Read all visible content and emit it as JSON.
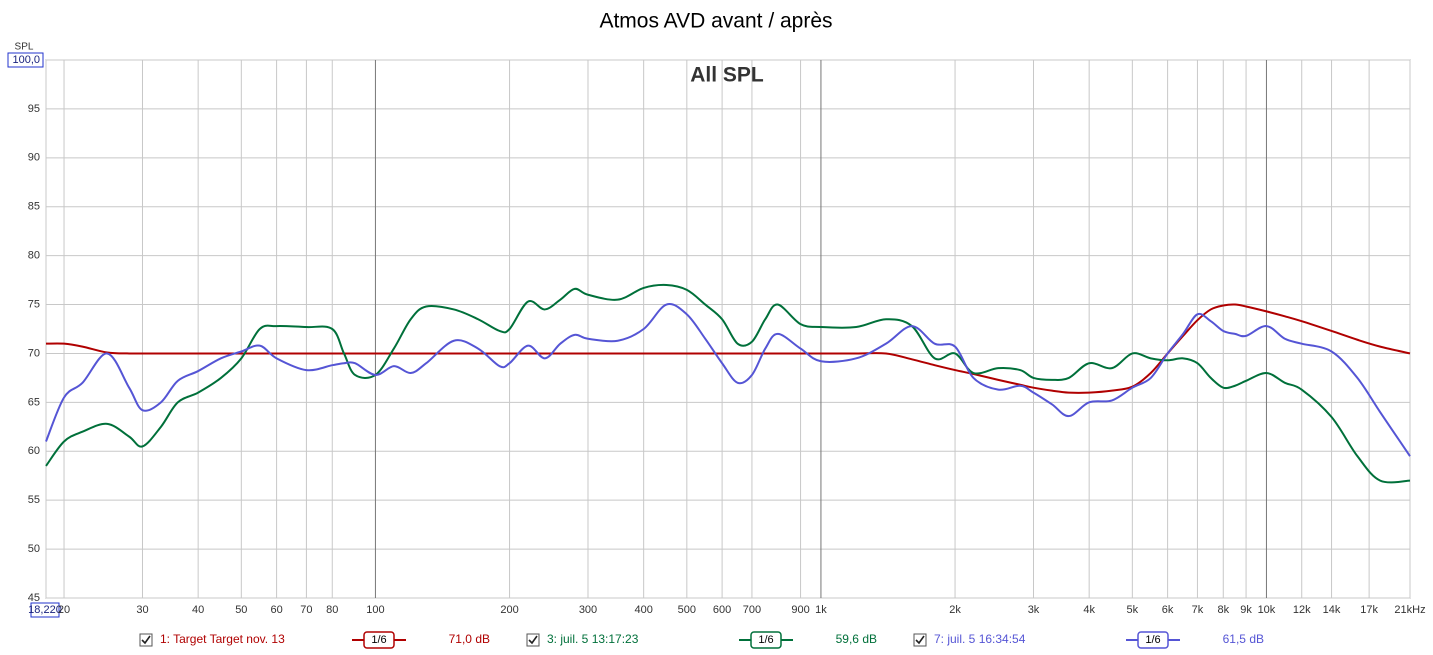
{
  "chart_data": {
    "type": "line",
    "title": "Atmos AVD avant / après",
    "subtitle": "All SPL",
    "y_label": "SPL",
    "log_x": true,
    "grid": true,
    "xlim": [
      18.22,
      21000
    ],
    "ylim": [
      45,
      100
    ],
    "xticks": [
      {
        "value": 18.22,
        "label": "18,220"
      },
      20,
      30,
      40,
      50,
      60,
      70,
      80,
      100,
      200,
      300,
      400,
      500,
      600,
      700,
      900,
      {
        "value": 1000,
        "label": "1k"
      },
      {
        "value": 2000,
        "label": "2k"
      },
      {
        "value": 3000,
        "label": "3k"
      },
      {
        "value": 4000,
        "label": "4k"
      },
      {
        "value": 5000,
        "label": "5k"
      },
      {
        "value": 6000,
        "label": "6k"
      },
      {
        "value": 7000,
        "label": "7k"
      },
      {
        "value": 8000,
        "label": "8k"
      },
      {
        "value": 9000,
        "label": "9k"
      },
      {
        "value": 10000,
        "label": "10k"
      },
      {
        "value": 12000,
        "label": "12k"
      },
      {
        "value": 14000,
        "label": "14k"
      },
      {
        "value": 17000,
        "label": "17k"
      },
      {
        "value": 21000,
        "label": "21kHz"
      }
    ],
    "yticks": [
      45,
      50,
      55,
      60,
      65,
      70,
      75,
      80,
      85,
      90,
      95,
      {
        "value": 100,
        "label": "100,0"
      }
    ],
    "x": [
      18.22,
      20,
      22,
      25,
      28,
      30,
      33,
      36,
      40,
      45,
      50,
      55,
      60,
      70,
      80,
      85,
      90,
      100,
      110,
      120,
      130,
      150,
      170,
      190,
      200,
      220,
      240,
      260,
      280,
      300,
      350,
      400,
      450,
      500,
      550,
      600,
      650,
      700,
      750,
      800,
      900,
      1000,
      1200,
      1400,
      1600,
      1800,
      2000,
      2200,
      2500,
      2800,
      3000,
      3300,
      3600,
      4000,
      4500,
      5000,
      5500,
      6000,
      6500,
      7000,
      7500,
      8000,
      8500,
      9000,
      10000,
      11000,
      12000,
      14000,
      16000,
      18000,
      21000
    ],
    "series": [
      {
        "name": "1: Target Target nov. 13",
        "color": "#b00000",
        "smoothing": "1/6",
        "level": "71,0 dB",
        "values": [
          71,
          71,
          70.7,
          70.1,
          70,
          70,
          70,
          70,
          70,
          70,
          70,
          70,
          70,
          70,
          70,
          70,
          70,
          70,
          70,
          70,
          70,
          70,
          70,
          70,
          70,
          70,
          70,
          70,
          70,
          70,
          70,
          70,
          70,
          70,
          70,
          70,
          70,
          70,
          70,
          70,
          70,
          70,
          70,
          70,
          69.4,
          68.8,
          68.3,
          67.9,
          67.3,
          66.8,
          66.5,
          66.2,
          66,
          66,
          66.2,
          66.6,
          68,
          70,
          71.8,
          73.4,
          74.5,
          74.9,
          75,
          74.8,
          74.3,
          73.8,
          73.3,
          72.3,
          71.4,
          70.7,
          70
        ]
      },
      {
        "name": "3: juil. 5 13:17:23",
        "color": "#00703a",
        "smoothing": "1/6",
        "level": "59,6 dB",
        "values": [
          58.5,
          61,
          62,
          62.8,
          61.5,
          60.5,
          62.5,
          65,
          66,
          67.5,
          69.5,
          72.5,
          72.8,
          72.7,
          72.5,
          70,
          67.8,
          67.8,
          70.5,
          73.5,
          74.8,
          74.5,
          73.5,
          72.3,
          72.5,
          75.3,
          74.5,
          75.5,
          76.6,
          76,
          75.5,
          76.7,
          77,
          76.5,
          75,
          73.5,
          71,
          71.2,
          73.5,
          75,
          73,
          72.7,
          72.7,
          73.5,
          72.8,
          69.5,
          70,
          68,
          68.5,
          68.3,
          67.5,
          67.3,
          67.5,
          69,
          68.5,
          70,
          69.5,
          69.3,
          69.5,
          69,
          67.5,
          66.5,
          66.7,
          67.2,
          68,
          67,
          66.3,
          63.5,
          59.5,
          57,
          57
        ]
      },
      {
        "name": "7: juil. 5 16:34:54",
        "color": "#5555d5",
        "smoothing": "1/6",
        "level": "61,5 dB",
        "values": [
          61,
          65.5,
          67,
          70,
          66.5,
          64.2,
          65,
          67.2,
          68.2,
          69.5,
          70.2,
          70.8,
          69.5,
          68.3,
          68.8,
          69,
          69,
          67.8,
          68.7,
          68,
          69,
          71.3,
          70.5,
          68.7,
          69,
          70.8,
          69.5,
          71,
          71.9,
          71.5,
          71.3,
          72.5,
          75,
          74,
          71.5,
          69,
          67,
          67.8,
          70.5,
          72,
          70.5,
          69.2,
          69.5,
          71,
          72.8,
          71,
          70.7,
          67.5,
          66.3,
          66.7,
          66,
          64.8,
          63.6,
          65,
          65.2,
          66.5,
          67.5,
          70,
          72,
          74,
          73.3,
          72.3,
          72,
          71.8,
          72.8,
          71.5,
          71,
          70.2,
          67.5,
          64,
          59.5
        ]
      }
    ]
  }
}
